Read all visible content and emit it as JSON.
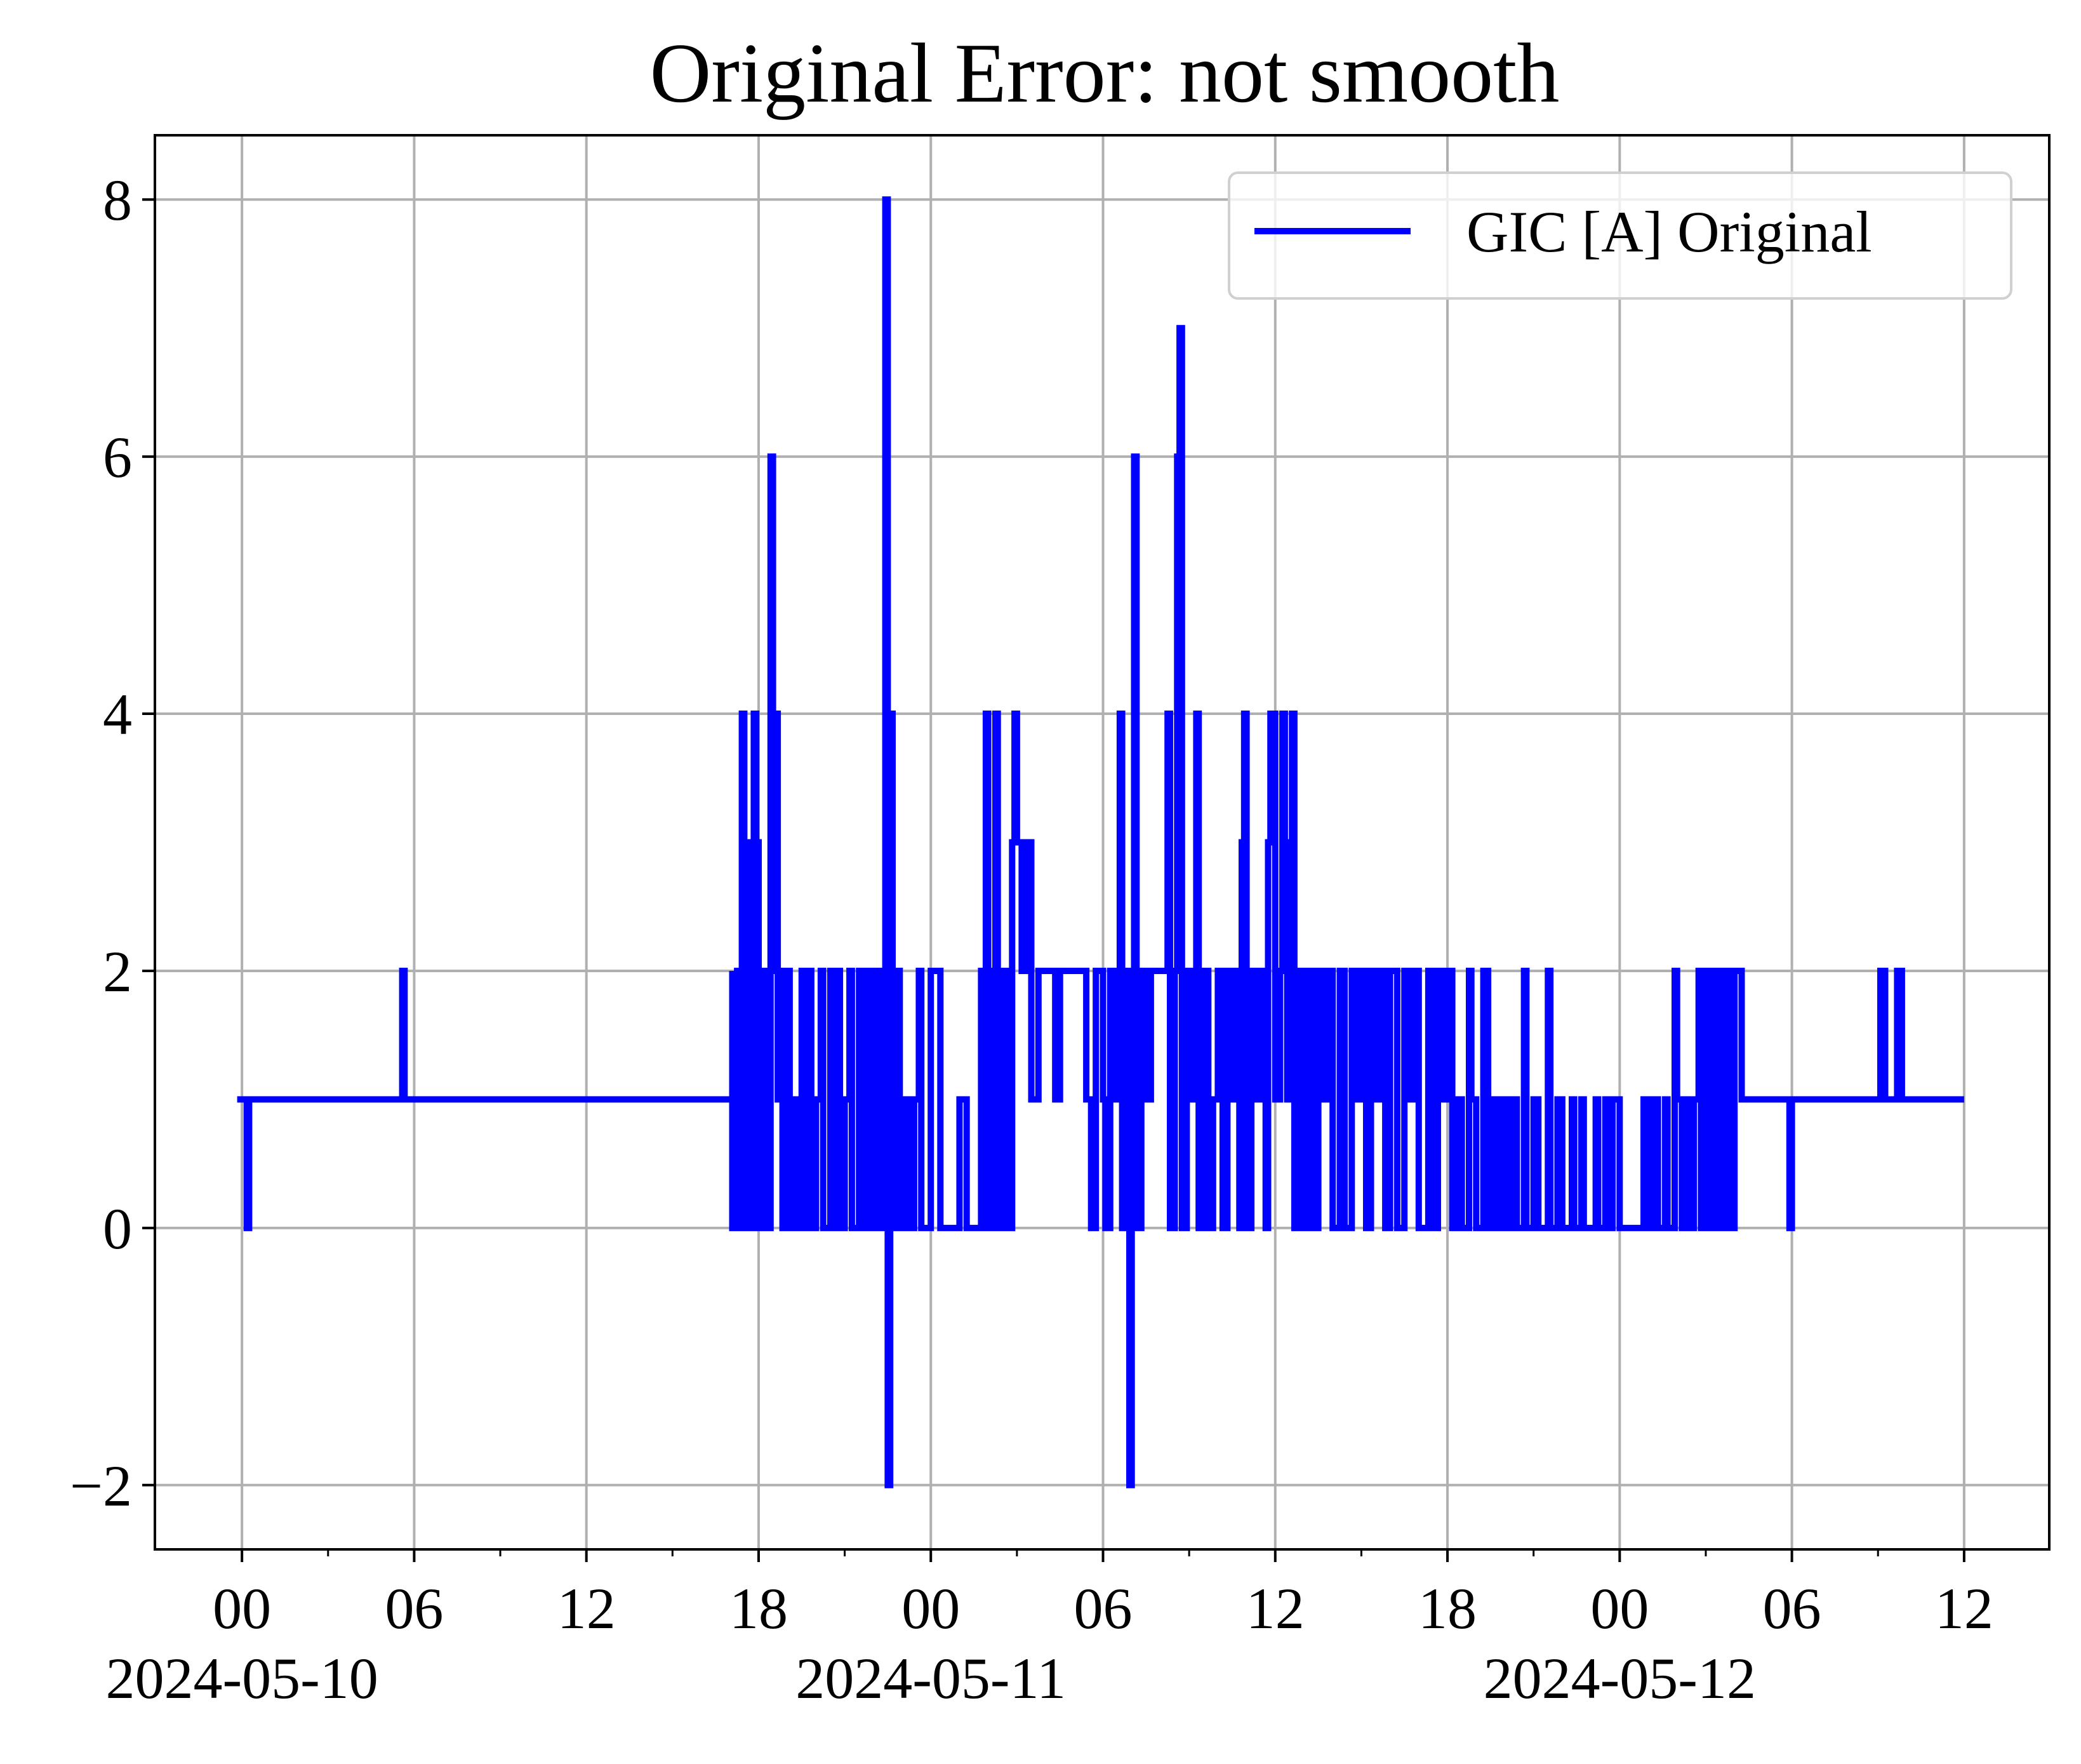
{
  "chart_data": {
    "type": "line",
    "title": "Original Error: not smooth",
    "xlabel": "",
    "ylabel": "",
    "x_axis": {
      "range": [
        "2024-05-09T20:58",
        "2024-05-12T14:58"
      ],
      "major_ticks": [
        {
          "time": "2024-05-10T00:00",
          "label": "00",
          "date_label": "2024-05-10"
        },
        {
          "time": "2024-05-10T06:00",
          "label": "06"
        },
        {
          "time": "2024-05-10T12:00",
          "label": "12"
        },
        {
          "time": "2024-05-10T18:00",
          "label": "18"
        },
        {
          "time": "2024-05-11T00:00",
          "label": "00",
          "date_label": "2024-05-11"
        },
        {
          "time": "2024-05-11T06:00",
          "label": "06"
        },
        {
          "time": "2024-05-11T12:00",
          "label": "12"
        },
        {
          "time": "2024-05-11T18:00",
          "label": "18"
        },
        {
          "time": "2024-05-12T00:00",
          "label": "00",
          "date_label": "2024-05-12"
        },
        {
          "time": "2024-05-12T06:00",
          "label": "06"
        },
        {
          "time": "2024-05-12T12:00",
          "label": "12"
        }
      ],
      "minor_ticks": [
        "2024-05-10T03:00",
        "2024-05-10T09:00",
        "2024-05-10T15:00",
        "2024-05-10T21:00",
        "2024-05-11T03:00",
        "2024-05-11T09:00",
        "2024-05-11T15:00",
        "2024-05-11T21:00",
        "2024-05-12T03:00",
        "2024-05-12T09:00"
      ]
    },
    "y_axis": {
      "range": [
        -2.5,
        8.5
      ],
      "ticks": [
        {
          "value": -2,
          "label": "−2"
        },
        {
          "value": 0,
          "label": "0"
        },
        {
          "value": 2,
          "label": "2"
        },
        {
          "value": 4,
          "label": "4"
        },
        {
          "value": 6,
          "label": "6"
        },
        {
          "value": 8,
          "label": "8"
        }
      ]
    },
    "grid": true,
    "legend": {
      "placement": "top-right",
      "entries": [
        "GIC [A] Original"
      ]
    },
    "series": [
      {
        "name": "GIC [A] Original",
        "color": "#0000ff",
        "style": "steps",
        "points": [
          [
            "2024-05-09T23:50",
            1
          ],
          [
            "2024-05-10T00:10",
            1
          ],
          [
            "2024-05-10T00:10",
            0
          ],
          [
            "2024-05-10T00:15",
            0
          ],
          [
            "2024-05-10T00:15",
            1
          ],
          [
            "2024-05-10T05:35",
            1
          ],
          [
            "2024-05-10T05:35",
            2
          ],
          [
            "2024-05-10T05:40",
            2
          ],
          [
            "2024-05-10T05:40",
            1
          ],
          [
            "2024-05-10T17:00",
            1
          ],
          [
            "2024-05-10T17:05",
            2
          ],
          [
            "2024-05-10T17:05",
            0
          ],
          [
            "2024-05-10T17:15",
            0
          ],
          [
            "2024-05-10T17:15",
            2
          ],
          [
            "2024-05-10T17:20",
            0
          ],
          [
            "2024-05-10T17:25",
            4
          ],
          [
            "2024-05-10T17:30",
            0
          ],
          [
            "2024-05-10T17:35",
            2
          ],
          [
            "2024-05-10T17:40",
            3
          ],
          [
            "2024-05-10T17:45",
            0
          ],
          [
            "2024-05-10T17:50",
            4
          ],
          [
            "2024-05-10T17:55",
            3
          ],
          [
            "2024-05-10T18:00",
            0
          ],
          [
            "2024-05-10T18:05",
            2
          ],
          [
            "2024-05-10T18:10",
            0
          ],
          [
            "2024-05-10T18:15",
            2
          ],
          [
            "2024-05-10T18:20",
            0
          ],
          [
            "2024-05-10T18:25",
            6
          ],
          [
            "2024-05-10T18:30",
            2
          ],
          [
            "2024-05-10T18:35",
            4
          ],
          [
            "2024-05-10T18:40",
            1
          ],
          [
            "2024-05-10T18:45",
            2
          ],
          [
            "2024-05-10T18:50",
            0
          ],
          [
            "2024-05-10T19:00",
            2
          ],
          [
            "2024-05-10T19:05",
            0
          ],
          [
            "2024-05-10T19:10",
            1
          ],
          [
            "2024-05-10T19:20",
            0
          ],
          [
            "2024-05-10T19:30",
            2
          ],
          [
            "2024-05-10T19:35",
            0
          ],
          [
            "2024-05-10T19:45",
            2
          ],
          [
            "2024-05-10T19:50",
            0
          ],
          [
            "2024-05-10T20:00",
            1
          ],
          [
            "2024-05-10T20:10",
            2
          ],
          [
            "2024-05-10T20:15",
            0
          ],
          [
            "2024-05-10T20:30",
            2
          ],
          [
            "2024-05-10T20:35",
            0
          ],
          [
            "2024-05-10T20:45",
            2
          ],
          [
            "2024-05-10T20:50",
            0
          ],
          [
            "2024-05-10T21:00",
            1
          ],
          [
            "2024-05-10T21:10",
            2
          ],
          [
            "2024-05-10T21:15",
            0
          ],
          [
            "2024-05-10T21:30",
            2
          ],
          [
            "2024-05-10T21:35",
            0
          ],
          [
            "2024-05-10T21:45",
            2
          ],
          [
            "2024-05-10T21:50",
            0
          ],
          [
            "2024-05-10T22:00",
            2
          ],
          [
            "2024-05-10T22:05",
            0
          ],
          [
            "2024-05-10T22:15",
            2
          ],
          [
            "2024-05-10T22:20",
            0
          ],
          [
            "2024-05-10T22:25",
            8
          ],
          [
            "2024-05-10T22:30",
            -2
          ],
          [
            "2024-05-10T22:35",
            4
          ],
          [
            "2024-05-10T22:40",
            0
          ],
          [
            "2024-05-10T22:50",
            2
          ],
          [
            "2024-05-10T22:55",
            0
          ],
          [
            "2024-05-10T23:05",
            1
          ],
          [
            "2024-05-10T23:15",
            0
          ],
          [
            "2024-05-10T23:25",
            1
          ],
          [
            "2024-05-10T23:35",
            2
          ],
          [
            "2024-05-10T23:40",
            0
          ],
          [
            "2024-05-11T00:00",
            2
          ],
          [
            "2024-05-11T00:20",
            0
          ],
          [
            "2024-05-11T01:00",
            1
          ],
          [
            "2024-05-11T01:15",
            0
          ],
          [
            "2024-05-11T01:45",
            2
          ],
          [
            "2024-05-11T01:50",
            0
          ],
          [
            "2024-05-11T01:55",
            4
          ],
          [
            "2024-05-11T02:00",
            0
          ],
          [
            "2024-05-11T02:10",
            2
          ],
          [
            "2024-05-11T02:15",
            4
          ],
          [
            "2024-05-11T02:20",
            0
          ],
          [
            "2024-05-11T02:30",
            2
          ],
          [
            "2024-05-11T02:40",
            0
          ],
          [
            "2024-05-11T02:50",
            3
          ],
          [
            "2024-05-11T02:55",
            4
          ],
          [
            "2024-05-11T03:00",
            3
          ],
          [
            "2024-05-11T03:10",
            2
          ],
          [
            "2024-05-11T03:20",
            3
          ],
          [
            "2024-05-11T03:30",
            1
          ],
          [
            "2024-05-11T03:45",
            2
          ],
          [
            "2024-05-11T04:20",
            1
          ],
          [
            "2024-05-11T04:30",
            2
          ],
          [
            "2024-05-11T05:25",
            1
          ],
          [
            "2024-05-11T05:35",
            0
          ],
          [
            "2024-05-11T05:45",
            2
          ],
          [
            "2024-05-11T06:00",
            1
          ],
          [
            "2024-05-11T06:05",
            0
          ],
          [
            "2024-05-11T06:15",
            2
          ],
          [
            "2024-05-11T06:25",
            1
          ],
          [
            "2024-05-11T06:35",
            4
          ],
          [
            "2024-05-11T06:40",
            0
          ],
          [
            "2024-05-11T06:50",
            2
          ],
          [
            "2024-05-11T06:55",
            -2
          ],
          [
            "2024-05-11T07:00",
            2
          ],
          [
            "2024-05-11T07:05",
            6
          ],
          [
            "2024-05-11T07:10",
            0
          ],
          [
            "2024-05-11T07:20",
            2
          ],
          [
            "2024-05-11T07:30",
            1
          ],
          [
            "2024-05-11T07:40",
            2
          ],
          [
            "2024-05-11T08:15",
            4
          ],
          [
            "2024-05-11T08:20",
            0
          ],
          [
            "2024-05-11T08:30",
            2
          ],
          [
            "2024-05-11T08:35",
            6
          ],
          [
            "2024-05-11T08:40",
            7
          ],
          [
            "2024-05-11T08:45",
            0
          ],
          [
            "2024-05-11T08:55",
            2
          ],
          [
            "2024-05-11T09:00",
            1
          ],
          [
            "2024-05-11T09:10",
            2
          ],
          [
            "2024-05-11T09:15",
            4
          ],
          [
            "2024-05-11T09:20",
            0
          ],
          [
            "2024-05-11T09:30",
            2
          ],
          [
            "2024-05-11T09:40",
            0
          ],
          [
            "2024-05-11T09:50",
            1
          ],
          [
            "2024-05-11T10:00",
            2
          ],
          [
            "2024-05-11T10:10",
            0
          ],
          [
            "2024-05-11T10:20",
            2
          ],
          [
            "2024-05-11T10:30",
            1
          ],
          [
            "2024-05-11T10:40",
            2
          ],
          [
            "2024-05-11T10:45",
            0
          ],
          [
            "2024-05-11T10:50",
            3
          ],
          [
            "2024-05-11T10:55",
            4
          ],
          [
            "2024-05-11T11:00",
            0
          ],
          [
            "2024-05-11T11:10",
            2
          ],
          [
            "2024-05-11T11:20",
            1
          ],
          [
            "2024-05-11T11:30",
            2
          ],
          [
            "2024-05-11T11:40",
            0
          ],
          [
            "2024-05-11T11:45",
            3
          ],
          [
            "2024-05-11T11:50",
            4
          ],
          [
            "2024-05-11T12:00",
            1
          ],
          [
            "2024-05-11T12:10",
            2
          ],
          [
            "2024-05-11T12:15",
            4
          ],
          [
            "2024-05-11T12:20",
            3
          ],
          [
            "2024-05-11T12:25",
            1
          ],
          [
            "2024-05-11T12:35",
            4
          ],
          [
            "2024-05-11T12:40",
            0
          ],
          [
            "2024-05-11T12:50",
            2
          ],
          [
            "2024-05-11T13:00",
            0
          ],
          [
            "2024-05-11T13:10",
            2
          ],
          [
            "2024-05-11T13:20",
            0
          ],
          [
            "2024-05-11T13:30",
            2
          ],
          [
            "2024-05-11T13:40",
            1
          ],
          [
            "2024-05-11T13:50",
            2
          ],
          [
            "2024-05-11T14:00",
            0
          ],
          [
            "2024-05-11T14:15",
            2
          ],
          [
            "2024-05-11T14:25",
            0
          ],
          [
            "2024-05-11T14:40",
            2
          ],
          [
            "2024-05-11T14:50",
            1
          ],
          [
            "2024-05-11T15:00",
            2
          ],
          [
            "2024-05-11T15:10",
            0
          ],
          [
            "2024-05-11T15:20",
            2
          ],
          [
            "2024-05-11T15:30",
            1
          ],
          [
            "2024-05-11T15:40",
            2
          ],
          [
            "2024-05-11T15:50",
            0
          ],
          [
            "2024-05-11T16:00",
            2
          ],
          [
            "2024-05-11T16:15",
            0
          ],
          [
            "2024-05-11T16:30",
            2
          ],
          [
            "2024-05-11T16:40",
            1
          ],
          [
            "2024-05-11T16:50",
            2
          ],
          [
            "2024-05-11T17:00",
            0
          ],
          [
            "2024-05-11T17:20",
            2
          ],
          [
            "2024-05-11T17:30",
            0
          ],
          [
            "2024-05-11T17:40",
            2
          ],
          [
            "2024-05-11T17:50",
            1
          ],
          [
            "2024-05-11T18:00",
            2
          ],
          [
            "2024-05-11T18:10",
            0
          ],
          [
            "2024-05-11T18:20",
            1
          ],
          [
            "2024-05-11T18:30",
            0
          ],
          [
            "2024-05-11T18:45",
            2
          ],
          [
            "2024-05-11T18:50",
            1
          ],
          [
            "2024-05-11T19:00",
            0
          ],
          [
            "2024-05-11T19:15",
            2
          ],
          [
            "2024-05-11T19:25",
            0
          ],
          [
            "2024-05-11T19:35",
            1
          ],
          [
            "2024-05-11T19:45",
            0
          ],
          [
            "2024-05-11T19:55",
            1
          ],
          [
            "2024-05-11T20:05",
            0
          ],
          [
            "2024-05-11T20:15",
            1
          ],
          [
            "2024-05-11T20:25",
            0
          ],
          [
            "2024-05-11T20:40",
            2
          ],
          [
            "2024-05-11T20:45",
            0
          ],
          [
            "2024-05-11T21:00",
            1
          ],
          [
            "2024-05-11T21:10",
            0
          ],
          [
            "2024-05-11T21:30",
            2
          ],
          [
            "2024-05-11T21:35",
            0
          ],
          [
            "2024-05-11T21:50",
            1
          ],
          [
            "2024-05-11T22:00",
            0
          ],
          [
            "2024-05-11T22:20",
            1
          ],
          [
            "2024-05-11T22:25",
            0
          ],
          [
            "2024-05-11T22:40",
            1
          ],
          [
            "2024-05-11T22:45",
            0
          ],
          [
            "2024-05-11T23:10",
            1
          ],
          [
            "2024-05-11T23:15",
            0
          ],
          [
            "2024-05-11T23:30",
            1
          ],
          [
            "2024-05-11T23:35",
            0
          ],
          [
            "2024-05-11T23:45",
            1
          ],
          [
            "2024-05-12T00:00",
            0
          ],
          [
            "2024-05-12T00:45",
            0
          ],
          [
            "2024-05-12T00:50",
            1
          ],
          [
            "2024-05-12T01:00",
            0
          ],
          [
            "2024-05-12T01:10",
            1
          ],
          [
            "2024-05-12T01:20",
            0
          ],
          [
            "2024-05-12T01:35",
            1
          ],
          [
            "2024-05-12T01:40",
            0
          ],
          [
            "2024-05-12T01:55",
            2
          ],
          [
            "2024-05-12T02:00",
            1
          ],
          [
            "2024-05-12T02:10",
            0
          ],
          [
            "2024-05-12T02:20",
            1
          ],
          [
            "2024-05-12T02:25",
            0
          ],
          [
            "2024-05-12T02:35",
            1
          ],
          [
            "2024-05-12T02:45",
            2
          ],
          [
            "2024-05-12T02:50",
            0
          ],
          [
            "2024-05-12T03:00",
            2
          ],
          [
            "2024-05-12T03:10",
            0
          ],
          [
            "2024-05-12T03:20",
            2
          ],
          [
            "2024-05-12T03:30",
            0
          ],
          [
            "2024-05-12T03:40",
            2
          ],
          [
            "2024-05-12T03:50",
            0
          ],
          [
            "2024-05-12T04:00",
            2
          ],
          [
            "2024-05-12T04:15",
            1
          ],
          [
            "2024-05-12T04:20",
            1
          ],
          [
            "2024-05-12T05:50",
            1
          ],
          [
            "2024-05-12T05:55",
            0
          ],
          [
            "2024-05-12T06:00",
            1
          ],
          [
            "2024-05-12T09:05",
            1
          ],
          [
            "2024-05-12T09:05",
            2
          ],
          [
            "2024-05-12T09:15",
            2
          ],
          [
            "2024-05-12T09:15",
            1
          ],
          [
            "2024-05-12T09:40",
            1
          ],
          [
            "2024-05-12T09:40",
            2
          ],
          [
            "2024-05-12T09:50",
            2
          ],
          [
            "2024-05-12T09:50",
            1
          ],
          [
            "2024-05-12T12:00",
            1
          ]
        ]
      }
    ]
  }
}
